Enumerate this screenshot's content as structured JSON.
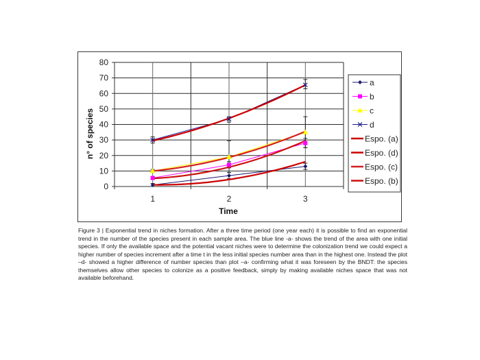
{
  "chart_data": {
    "type": "line",
    "title": "",
    "xlabel": "Time",
    "ylabel": "n° of species",
    "categories": [
      "1",
      "2",
      "3"
    ],
    "x": [
      1,
      2,
      3
    ],
    "ylim": [
      0,
      80
    ],
    "yticks": [
      0,
      10,
      20,
      30,
      40,
      50,
      60,
      70,
      80
    ],
    "grid": true,
    "legend_position": "right",
    "series": [
      {
        "name": "a",
        "kind": "data",
        "color": "#1a1a6e",
        "marker": "diamond",
        "values": [
          1,
          7,
          13
        ],
        "error_low": [
          0,
          5,
          11
        ],
        "error_high": [
          2,
          9,
          15
        ]
      },
      {
        "name": "b",
        "kind": "data",
        "color": "#ff00ff",
        "marker": "square",
        "values": [
          5.5,
          14,
          28
        ],
        "error_low": [
          4.5,
          12,
          25
        ],
        "error_high": [
          6.5,
          16,
          31
        ]
      },
      {
        "name": "c",
        "kind": "data",
        "color": "#ffff00",
        "marker": "triangle",
        "values": [
          10,
          19,
          35
        ],
        "error_low": [
          9,
          9,
          25
        ],
        "error_high": [
          11,
          29.5,
          45
        ]
      },
      {
        "name": "d",
        "kind": "data",
        "color": "#1a1a8c",
        "marker": "x",
        "values": [
          30,
          43.5,
          65.5
        ],
        "error_low": [
          28,
          41.5,
          63
        ],
        "error_high": [
          32,
          45,
          69
        ]
      },
      {
        "name": "Espo. (a)",
        "kind": "trend",
        "color": "#cc0000",
        "values": [
          1.1,
          4.5,
          16
        ]
      },
      {
        "name": "Espo. (d)",
        "kind": "trend",
        "color": "#cc0000",
        "values": [
          29.5,
          44,
          65.5
        ]
      },
      {
        "name": "Espo. (c)",
        "kind": "trend",
        "color": "#d32020",
        "values": [
          10,
          18.8,
          35.5
        ]
      },
      {
        "name": "Espo. (b)",
        "kind": "trend",
        "color": "#cc1111",
        "values": [
          5.2,
          12.5,
          29.5
        ]
      }
    ]
  },
  "caption": {
    "text": "Figure 3 | Exponential trend in niches formation. After a three time period (one year each) it is possible to find an exponential trend in the number of the species present in each sample area. The blue line -a- shows the trend of the area with one initial species. If only the available space and the potential vacant niches were to determine the colonization trend we could expect a higher number of species increment after a time t in the less initial species number area than in the highest one. Instead the plot –d- showed a higher difference of number species than plot –a- confirming what it was foreseen by the BNDT: the species themselves allow other species to colonize as a positive feedback, simply by making available niches space that was not available beforehand."
  }
}
